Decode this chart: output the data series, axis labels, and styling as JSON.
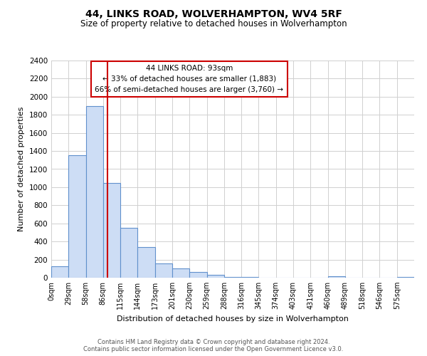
{
  "title": "44, LINKS ROAD, WOLVERHAMPTON, WV4 5RF",
  "subtitle": "Size of property relative to detached houses in Wolverhampton",
  "xlabel": "Distribution of detached houses by size in Wolverhampton",
  "ylabel": "Number of detached properties",
  "bin_labels": [
    "0sqm",
    "29sqm",
    "58sqm",
    "86sqm",
    "115sqm",
    "144sqm",
    "173sqm",
    "201sqm",
    "230sqm",
    "259sqm",
    "288sqm",
    "316sqm",
    "345sqm",
    "374sqm",
    "403sqm",
    "431sqm",
    "460sqm",
    "489sqm",
    "518sqm",
    "546sqm",
    "575sqm"
  ],
  "bar_values": [
    125,
    1350,
    1900,
    1050,
    550,
    335,
    160,
    105,
    60,
    30,
    10,
    5,
    2,
    1,
    0,
    0,
    12,
    0,
    0,
    0,
    5
  ],
  "bar_color": "#cdddf5",
  "bar_edge_color": "#6090cc",
  "vline_color": "#cc0000",
  "vline_xdata": 2.77,
  "annotation_title": "44 LINKS ROAD: 93sqm",
  "annotation_line1": "← 33% of detached houses are smaller (1,883)",
  "annotation_line2": "66% of semi-detached houses are larger (3,760) →",
  "annotation_box_color": "#ffffff",
  "annotation_box_edge": "#cc0000",
  "ylim": [
    0,
    2400
  ],
  "yticks": [
    0,
    200,
    400,
    600,
    800,
    1000,
    1200,
    1400,
    1600,
    1800,
    2000,
    2200,
    2400
  ],
  "footer1": "Contains HM Land Registry data © Crown copyright and database right 2024.",
  "footer2": "Contains public sector information licensed under the Open Government Licence v3.0.",
  "bg_color": "#ffffff",
  "grid_color": "#d0d0d0"
}
